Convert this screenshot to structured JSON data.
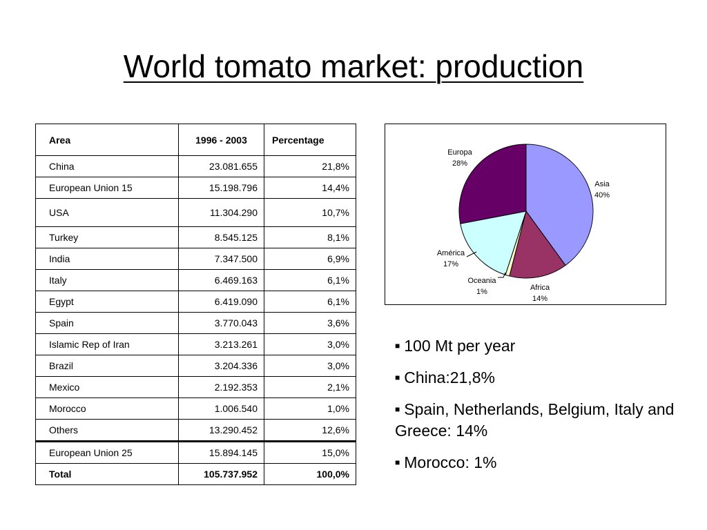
{
  "title": "World tomato market: production",
  "table": {
    "headers": [
      "Area",
      "1996 - 2003",
      "Percentage"
    ],
    "rows": [
      {
        "area": "China",
        "value": "23.081.655",
        "pct": "21,8%"
      },
      {
        "area": "European Union 15",
        "value": "15.198.796",
        "pct": "14,4%"
      },
      {
        "area": "USA",
        "value": "11.304.290",
        "pct": "10,7%"
      },
      {
        "area": "Turkey",
        "value": "8.545.125",
        "pct": "8,1%"
      },
      {
        "area": "India",
        "value": "7.347.500",
        "pct": "6,9%"
      },
      {
        "area": "Italy",
        "value": "6.469.163",
        "pct": "6,1%"
      },
      {
        "area": "Egypt",
        "value": "6.419.090",
        "pct": "6,1%"
      },
      {
        "area": "Spain",
        "value": "3.770.043",
        "pct": "3,6%"
      },
      {
        "area": "Islamic Rep of Iran",
        "value": "3.213.261",
        "pct": "3,0%"
      },
      {
        "area": "Brazil",
        "value": "3.204.336",
        "pct": "3,0%"
      },
      {
        "area": "Mexico",
        "value": "2.192.353",
        "pct": "2,1%"
      },
      {
        "area": "Morocco",
        "value": "1.006.540",
        "pct": "1,0%"
      },
      {
        "area": "Others",
        "value": "13.290.452",
        "pct": "12,6%"
      },
      {
        "area": "European Union 25",
        "value": "15.894.145",
        "pct": "15,0%"
      },
      {
        "area": "Total",
        "value": "105.737.952",
        "pct": "100,0%"
      }
    ]
  },
  "chart_data": {
    "type": "pie",
    "title": "",
    "slices": [
      {
        "label": "Asia",
        "value": 40,
        "value_label": "40%",
        "color": "#9999FF"
      },
      {
        "label": "Africa",
        "value": 14,
        "value_label": "14%",
        "color": "#993366"
      },
      {
        "label": "Oceania",
        "value": 1,
        "value_label": "1%",
        "color": "#FFFFCC"
      },
      {
        "label": "América",
        "value": 17,
        "value_label": "17%",
        "color": "#CCFFFF"
      },
      {
        "label": "Europa",
        "value": 28,
        "value_label": "28%",
        "color": "#660066"
      }
    ]
  },
  "bullets": [
    "100 Mt per year",
    "China:21,8%",
    "Spain, Netherlands, Belgium, Italy and Greece: 14%",
    "Morocco: 1%"
  ],
  "bullet_marker": "■"
}
